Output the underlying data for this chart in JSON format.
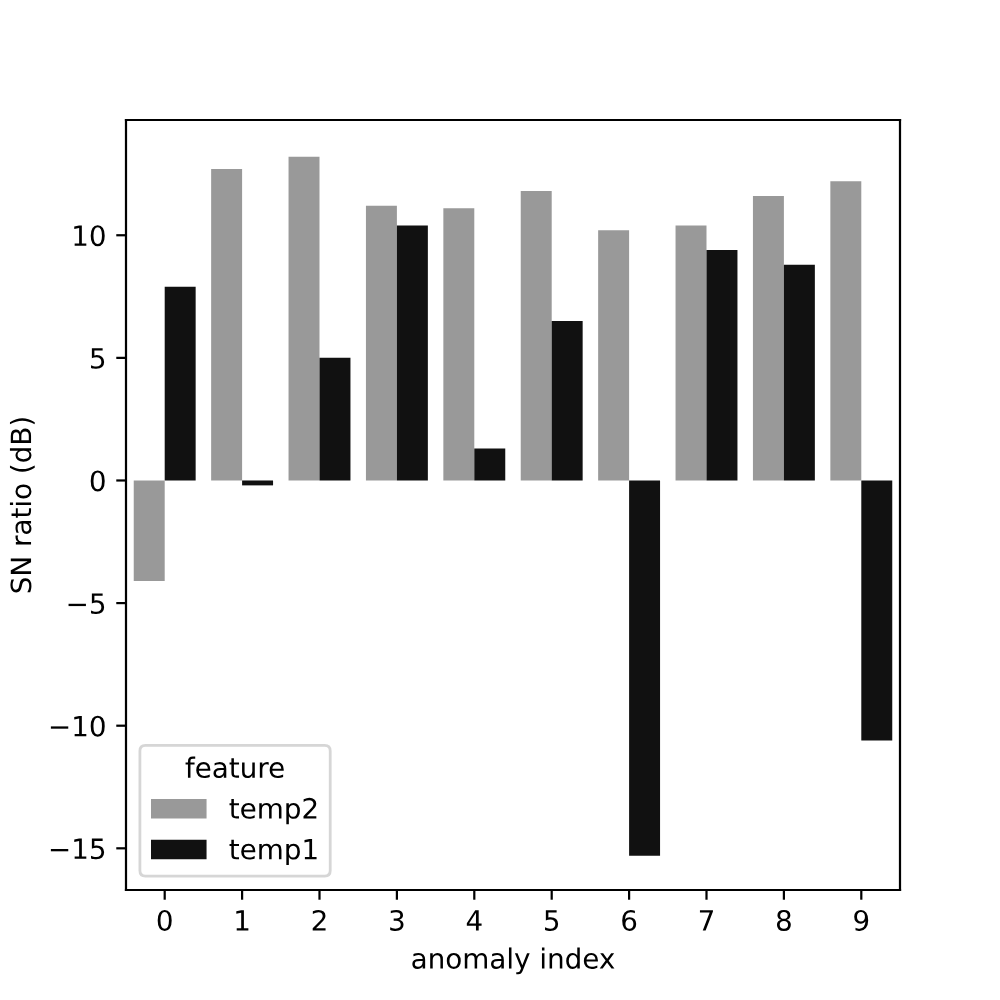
{
  "chart_data": {
    "type": "bar",
    "xlabel": "anomaly index",
    "ylabel": "SN ratio (dB)",
    "legend_title": "feature",
    "categories": [
      "0",
      "1",
      "2",
      "3",
      "4",
      "5",
      "6",
      "7",
      "8",
      "9"
    ],
    "series": [
      {
        "name": "temp2",
        "color": "#999999",
        "values": [
          -4.1,
          12.7,
          13.2,
          11.2,
          11.1,
          11.8,
          10.2,
          10.4,
          11.6,
          12.2
        ]
      },
      {
        "name": "temp1",
        "color": "#111111",
        "values": [
          7.9,
          -0.2,
          5.0,
          10.4,
          1.3,
          6.5,
          -15.3,
          9.4,
          8.8,
          -10.6
        ]
      }
    ],
    "ylim": [
      -16.7,
      14.7
    ],
    "yticks": [
      -15,
      -10,
      -5,
      0,
      5,
      10
    ],
    "grid": false,
    "legend": "bottom left"
  }
}
